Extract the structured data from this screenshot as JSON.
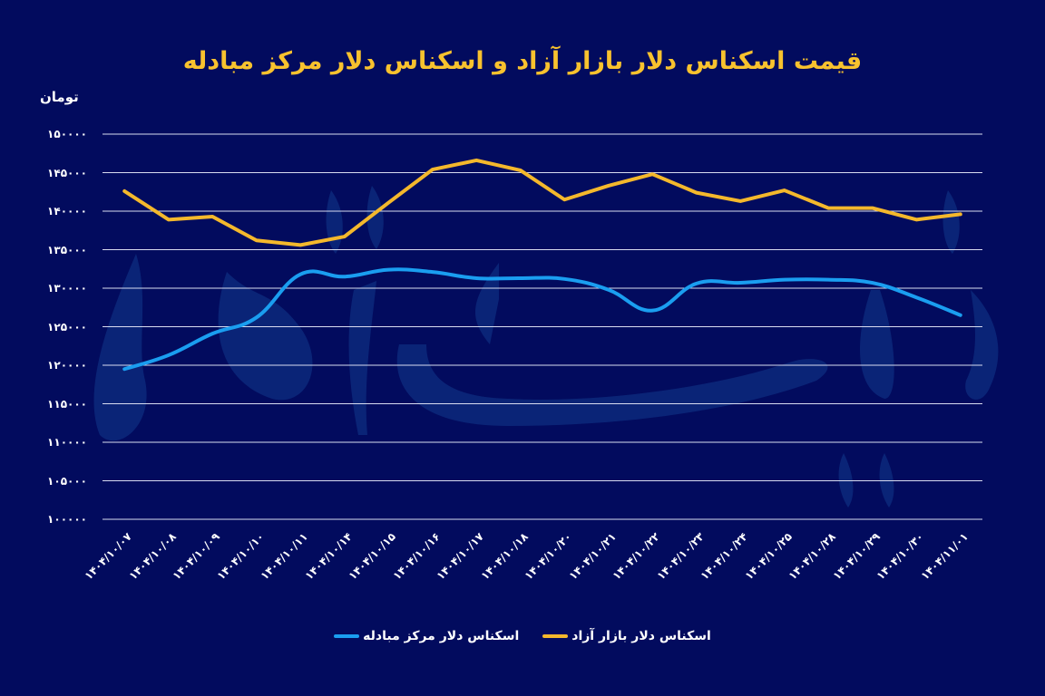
{
  "chart_data": {
    "type": "line",
    "title": "قیمت اسکناس دلار بازار آزاد و اسکناس دلار مرکز مبادله",
    "ylabel": "تومان",
    "xlabel": "",
    "ylim": [
      100000,
      150000
    ],
    "grid": true,
    "legend_position": "bottom",
    "yticks": [
      150000,
      145000,
      140000,
      135000,
      130000,
      125000,
      120000,
      115000,
      110000,
      105000,
      100000
    ],
    "ytick_labels": [
      "۱۵۰۰۰۰",
      "۱۴۵۰۰۰",
      "۱۴۰۰۰۰",
      "۱۳۵۰۰۰",
      "۱۳۰۰۰۰",
      "۱۲۵۰۰۰",
      "۱۲۰۰۰۰",
      "۱۱۵۰۰۰",
      "۱۱۰۰۰۰",
      "۱۰۵۰۰۰",
      "۱۰۰۰۰۰"
    ],
    "categories": [
      "۱۴۰۴/۱۰/۰۷",
      "۱۴۰۴/۱۰/۰۸",
      "۱۴۰۴/۱۰/۰۹",
      "۱۴۰۴/۱۰/۱۰",
      "۱۴۰۴/۱۰/۱۱",
      "۱۴۰۴/۱۰/۱۴",
      "۱۴۰۴/۱۰/۱۵",
      "۱۴۰۴/۱۰/۱۶",
      "۱۴۰۴/۱۰/۱۷",
      "۱۴۰۴/۱۰/۱۸",
      "۱۴۰۴/۱۰/۲۰",
      "۱۴۰۴/۱۰/۲۱",
      "۱۴۰۴/۱۰/۲۲",
      "۱۴۰۴/۱۰/۲۳",
      "۱۴۰۴/۱۰/۲۴",
      "۱۴۰۴/۱۰/۲۵",
      "۱۴۰۴/۱۰/۲۸",
      "۱۴۰۴/۱۰/۲۹",
      "۱۴۰۴/۱۰/۳۰",
      "۱۴۰۴/۱۱/۰۱"
    ],
    "series": [
      {
        "name": "اسکناس دلار بازار آزاد",
        "color": "#f4b82c",
        "smooth": false,
        "values": [
          142600,
          138900,
          139300,
          136200,
          135600,
          136700,
          141100,
          145400,
          146600,
          145300,
          141500,
          143300,
          144800,
          142400,
          141300,
          142700,
          140400,
          140400,
          138900,
          139600
        ]
      },
      {
        "name": "اسکناس دلار مرکز مبادله",
        "color": "#1a9ef0",
        "smooth": true,
        "values": [
          119500,
          121300,
          124100,
          126200,
          131800,
          131500,
          132400,
          132100,
          131300,
          131300,
          131200,
          129800,
          127100,
          130600,
          130700,
          131100,
          131100,
          130700,
          128800,
          126500
        ]
      }
    ]
  },
  "colors": {
    "background": "#020b5e",
    "title": "#f8c22e",
    "grid": "#d8dcf0",
    "watermark": "#123a8c"
  },
  "legend": {
    "items": [
      {
        "label": "اسکناس دلار بازار آزاد",
        "color": "#f4b82c"
      },
      {
        "label": "اسکناس دلار مرکز مبادله",
        "color": "#1a9ef0"
      }
    ]
  }
}
